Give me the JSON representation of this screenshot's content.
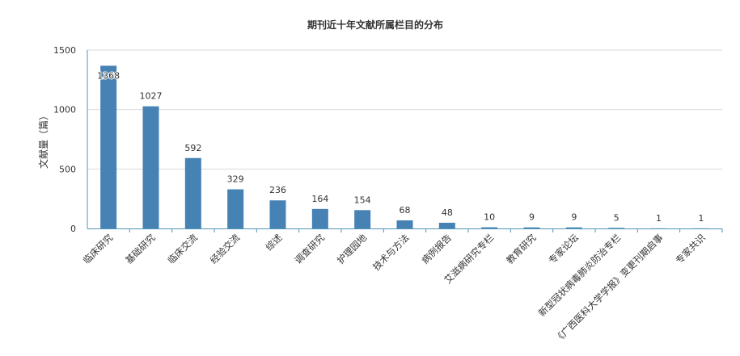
{
  "chart_data": {
    "type": "bar",
    "title": "期刊近十年文献所属栏目的分布",
    "ylabel": "文献量（篇）",
    "xlabel": "",
    "ylim": [
      0,
      1500
    ],
    "yticks": [
      0,
      500,
      1000,
      1500
    ],
    "grid": true,
    "legend": "none",
    "categories": [
      "临床研究",
      "基础研究",
      "临床交流",
      "经验交流",
      "综述",
      "调查研究",
      "护理园地",
      "技术与方法",
      "病例报告",
      "艾滋病研究专栏",
      "教育研究",
      "专家论坛",
      "新型冠状病毒肺炎防治专栏",
      "《广西医科大学学报》变更刊期启事",
      "专家共识"
    ],
    "values": [
      1368,
      1027,
      592,
      329,
      236,
      164,
      154,
      68,
      48,
      10,
      9,
      9,
      5,
      1,
      1
    ],
    "bar_color": "#4682b4",
    "axis_color": "#4e95b5",
    "grid_color": "#d9d9d9"
  }
}
